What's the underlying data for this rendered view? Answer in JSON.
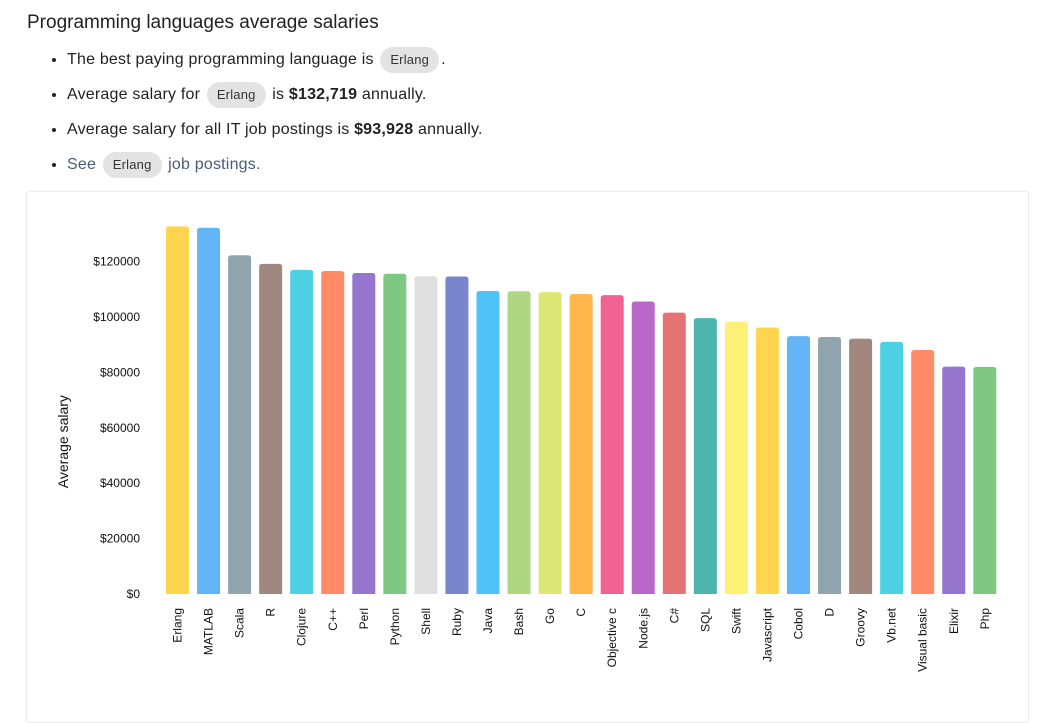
{
  "page": {
    "title": "Programming languages average salaries",
    "facts": {
      "best_prefix": "The best paying programming language is",
      "best_lang": "Erlang",
      "best_suffix": ".",
      "avg_prefix": "Average salary for",
      "avg_lang": "Erlang",
      "avg_mid": "is",
      "avg_value": "$132,719",
      "avg_suffix": "annually.",
      "all_prefix": "Average salary for all IT job postings is",
      "all_value": "$93,928",
      "all_suffix": "annually.",
      "see_prefix": "See",
      "see_lang": "Erlang",
      "see_suffix": "job postings."
    }
  },
  "chart_data": {
    "type": "bar",
    "title": "",
    "xlabel": "",
    "ylabel": "Average salary",
    "ylim": [
      0,
      132719
    ],
    "yticks": [
      0,
      20000,
      40000,
      60000,
      80000,
      100000,
      120000
    ],
    "ytick_labels": [
      "$0",
      "$20000",
      "$40000",
      "$60000",
      "$80000",
      "$100000",
      "$120000"
    ],
    "categories": [
      "Erlang",
      "MATLAB",
      "Scala",
      "R",
      "Clojure",
      "C++",
      "Perl",
      "Python",
      "Shell",
      "Ruby",
      "Java",
      "Bash",
      "Go",
      "C",
      "Objective c",
      "Node.js",
      "C#",
      "SQL",
      "Swift",
      "Javascript",
      "Cobol",
      "D",
      "Groovy",
      "Vb.net",
      "Visual basic",
      "Elixir",
      "Php"
    ],
    "values": [
      132719,
      132200,
      122300,
      119200,
      117000,
      116600,
      115900,
      115600,
      114700,
      114600,
      109400,
      109300,
      109000,
      108300,
      107900,
      105600,
      101600,
      99600,
      98300,
      96200,
      93100,
      92800,
      92200,
      91000,
      88100,
      82100,
      82000
    ],
    "colors": [
      "#ffd54f",
      "#64b5f6",
      "#90a4ae",
      "#a1887f",
      "#4dd0e1",
      "#ff8a65",
      "#9575cd",
      "#81c784",
      "#e0e0e0",
      "#7986cb",
      "#4fc3f7",
      "#aed581",
      "#dce775",
      "#ffb74d",
      "#f06292",
      "#ba68c8",
      "#e57373",
      "#4db6ac",
      "#fff176",
      "#ffd54f",
      "#64b5f6",
      "#90a4ae",
      "#a1887f",
      "#4dd0e1",
      "#ff8a65",
      "#9575cd",
      "#81c784"
    ]
  }
}
